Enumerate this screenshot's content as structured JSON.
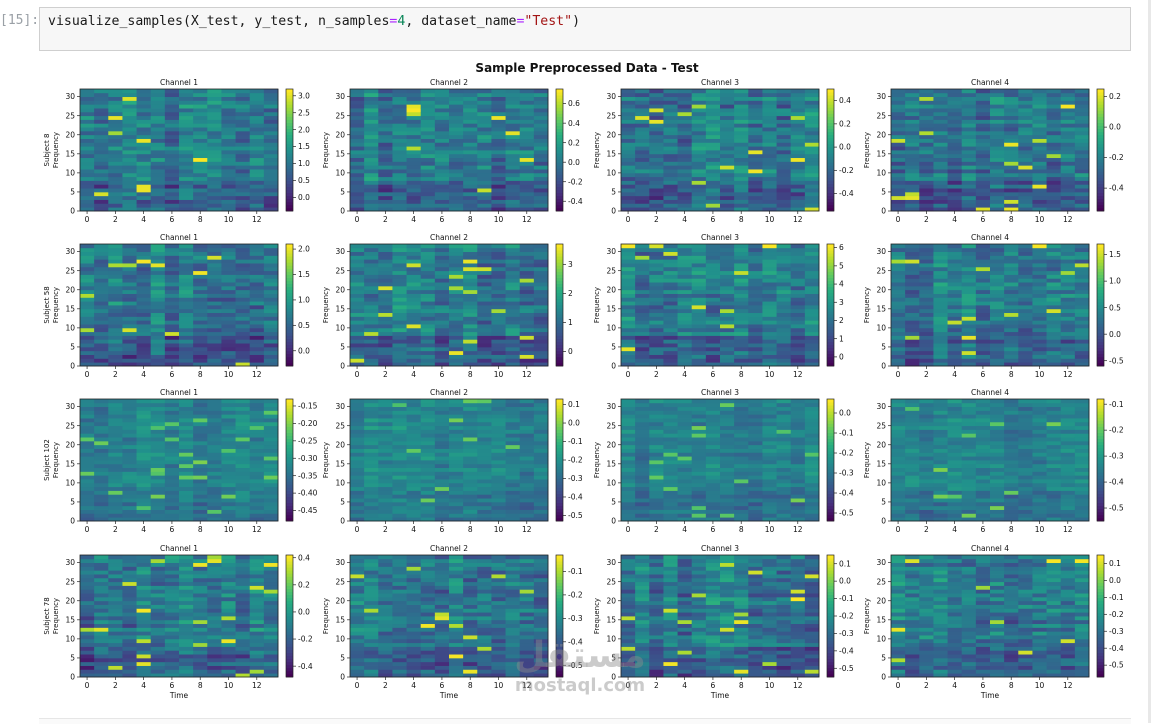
{
  "cell": {
    "prompt": "[15]:",
    "code_parts": [
      {
        "t": "visualize_samples(X_test, y_test, n_samples",
        "c": ""
      },
      {
        "t": "=",
        "c": "op"
      },
      {
        "t": "4",
        "c": "num"
      },
      {
        "t": ", dataset_name",
        "c": ""
      },
      {
        "t": "=",
        "c": "op"
      },
      {
        "t": "\"Test\"",
        "c": "str"
      },
      {
        "t": ")",
        "c": ""
      }
    ]
  },
  "watermark": {
    "top": "مستقل",
    "bottom": "mostaql.com"
  },
  "chart_data": {
    "type": "heatmap",
    "title": "Sample Preprocessed Data - Test",
    "x_ticks": [
      "0",
      "2",
      "4",
      "6",
      "8",
      "10",
      "12"
    ],
    "y_ticks": [
      "0",
      "5",
      "10",
      "15",
      "20",
      "25",
      "30"
    ],
    "xlabel": "Time",
    "ylabel": "Frequency",
    "x_range": [
      0,
      14
    ],
    "y_range": [
      0,
      32
    ],
    "colormap": "viridis",
    "colormap_stops": [
      "#440154",
      "#472d7b",
      "#3b528b",
      "#2c728e",
      "#21918c",
      "#28ae80",
      "#5ec962",
      "#addc30",
      "#fde725"
    ],
    "rows": [
      {
        "subject": "Subject 8",
        "panels": [
          {
            "channel": "Channel 1",
            "colorbar_ticks": [
              "0.0",
              "0.5",
              "1.0",
              "1.5",
              "2.0",
              "2.5",
              "3.0"
            ],
            "vmin": -0.4,
            "vmax": 3.2
          },
          {
            "channel": "Channel 2",
            "colorbar_ticks": [
              "-0.4",
              "-0.2",
              "0.0",
              "0.2",
              "0.4",
              "0.6"
            ],
            "vmin": -0.5,
            "vmax": 0.75
          },
          {
            "channel": "Channel 3",
            "colorbar_ticks": [
              "-0.4",
              "-0.2",
              "0.0",
              "0.2",
              "0.4"
            ],
            "vmin": -0.55,
            "vmax": 0.5
          },
          {
            "channel": "Channel 4",
            "colorbar_ticks": [
              "-0.4",
              "-0.2",
              "0.0",
              "0.2"
            ],
            "vmin": -0.55,
            "vmax": 0.25
          }
        ]
      },
      {
        "subject": "Subject 58",
        "panels": [
          {
            "channel": "Channel 1",
            "colorbar_ticks": [
              "0.0",
              "0.5",
              "1.0",
              "1.5",
              "2.0"
            ],
            "vmin": -0.3,
            "vmax": 2.1
          },
          {
            "channel": "Channel 2",
            "colorbar_ticks": [
              "0",
              "1",
              "2",
              "3"
            ],
            "vmin": -0.5,
            "vmax": 3.7
          },
          {
            "channel": "Channel 3",
            "colorbar_ticks": [
              "0",
              "1",
              "2",
              "3",
              "4",
              "5",
              "6"
            ],
            "vmin": -0.5,
            "vmax": 6.2
          },
          {
            "channel": "Channel 4",
            "colorbar_ticks": [
              "-0.5",
              "0.0",
              "0.5",
              "1.0",
              "1.5"
            ],
            "vmin": -0.6,
            "vmax": 1.7
          }
        ]
      },
      {
        "subject": "Subject 102",
        "panels": [
          {
            "channel": "Channel 1",
            "colorbar_ticks": [
              "-0.45",
              "-0.40",
              "-0.35",
              "-0.30",
              "-0.25",
              "-0.20",
              "-0.15"
            ],
            "vmin": -0.48,
            "vmax": -0.13
          },
          {
            "channel": "Channel 2",
            "colorbar_ticks": [
              "-0.5",
              "-0.4",
              "-0.3",
              "-0.2",
              "-0.1",
              "0.0",
              "0.1"
            ],
            "vmin": -0.53,
            "vmax": 0.13
          },
          {
            "channel": "Channel 3",
            "colorbar_ticks": [
              "-0.5",
              "-0.4",
              "-0.3",
              "-0.2",
              "-0.1",
              "0.0"
            ],
            "vmin": -0.54,
            "vmax": 0.07
          },
          {
            "channel": "Channel 4",
            "colorbar_ticks": [
              "-0.5",
              "-0.4",
              "-0.3",
              "-0.2",
              "-0.1"
            ],
            "vmin": -0.55,
            "vmax": -0.08
          }
        ]
      },
      {
        "subject": "Subject 78",
        "panels": [
          {
            "channel": "Channel 1",
            "colorbar_ticks": [
              "-0.4",
              "-0.2",
              "0.0",
              "0.2",
              "0.4"
            ],
            "vmin": -0.48,
            "vmax": 0.42
          },
          {
            "channel": "Channel 2",
            "colorbar_ticks": [
              "-0.5",
              "-0.4",
              "-0.3",
              "-0.2",
              "-0.1"
            ],
            "vmin": -0.55,
            "vmax": -0.03
          },
          {
            "channel": "Channel 3",
            "colorbar_ticks": [
              "-0.5",
              "-0.4",
              "-0.3",
              "-0.2",
              "-0.1",
              "0.0",
              "0.1"
            ],
            "vmin": -0.55,
            "vmax": 0.15
          },
          {
            "channel": "Channel 4",
            "colorbar_ticks": [
              "-0.5",
              "-0.4",
              "-0.3",
              "-0.2",
              "-0.1",
              "0.0",
              "0.1"
            ],
            "vmin": -0.57,
            "vmax": 0.15
          }
        ]
      }
    ]
  }
}
